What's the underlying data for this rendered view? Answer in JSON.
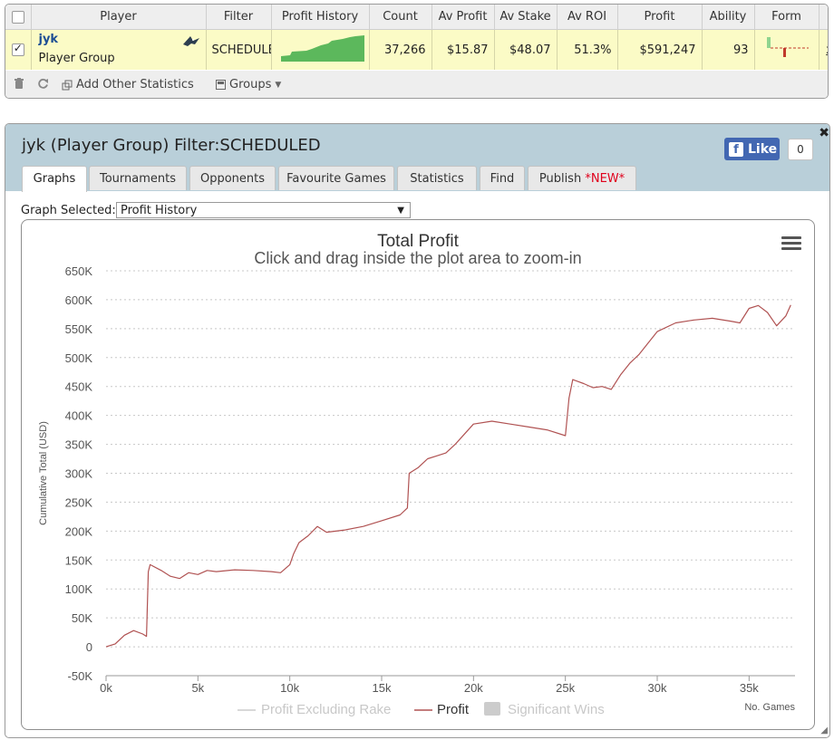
{
  "stats": {
    "headers": [
      "Player",
      "Filter",
      "Profit History",
      "Count",
      "Av Profit",
      "Av Stake",
      "Av ROI",
      "Profit",
      "Ability",
      "Form"
    ],
    "row": {
      "name": "jyk",
      "type": "Player Group",
      "filter": "SCHEDULE",
      "count": "37,266",
      "av_profit": "$15.87",
      "av_stake": "$48.07",
      "av_roi": "51.3%",
      "profit": "$591,247",
      "ability": "93",
      "remove": "x"
    },
    "toolbar": {
      "add_stats": "Add Other Statistics",
      "groups": "Groups"
    }
  },
  "graph_panel": {
    "title": "jyk (Player Group) Filter:SCHEDULED",
    "fb_like": "Like",
    "fb_count": "0",
    "tabs": [
      {
        "label": "Graphs"
      },
      {
        "label": "Tournaments"
      },
      {
        "label": "Opponents"
      },
      {
        "label": "Favourite Games"
      },
      {
        "label": "Statistics"
      },
      {
        "label": "Find"
      },
      {
        "label": "Publish",
        "badge": "*NEW*"
      }
    ],
    "active_tab": "Graphs",
    "select_label": "Graph Selected:",
    "select_value": "Profit History"
  },
  "colors": {
    "profit_line": "#b05252",
    "header_bg": "#b9cfd9",
    "highlight_row": "#fbfbc6",
    "sparkline": "#5cb85c",
    "fb_blue": "#4267b2"
  },
  "chart_data": {
    "type": "line",
    "title": "Total Profit",
    "subtitle": "Click and drag inside the plot area to zoom-in",
    "xlabel": "No. Games",
    "ylabel": "Cumulative Total (USD)",
    "xlim": [
      0,
      37266
    ],
    "ylim": [
      -50000,
      650000
    ],
    "x_ticks": [
      "0k",
      "5k",
      "10k",
      "15k",
      "20k",
      "25k",
      "30k",
      "35k"
    ],
    "y_ticks": [
      "650K",
      "600K",
      "550K",
      "500K",
      "450K",
      "400K",
      "350K",
      "300K",
      "250K",
      "200K",
      "150K",
      "100K",
      "50K",
      "0",
      "-50K"
    ],
    "grid": true,
    "legend_position": "bottom",
    "legend": [
      {
        "name": "Profit Excluding Rake",
        "active": false
      },
      {
        "name": "Profit",
        "active": true
      },
      {
        "name": "Significant Wins",
        "active": false
      }
    ],
    "series": [
      {
        "name": "Profit",
        "x": [
          0,
          500,
          1000,
          1500,
          2000,
          2200,
          2300,
          2400,
          3000,
          3500,
          4000,
          4500,
          5000,
          5500,
          6000,
          7000,
          8000,
          9000,
          9500,
          10000,
          10200,
          10500,
          11000,
          11500,
          12000,
          13000,
          14000,
          15000,
          16000,
          16400,
          16500,
          17000,
          17500,
          18000,
          18500,
          19000,
          20000,
          21000,
          22000,
          23000,
          24000,
          25000,
          25200,
          25400,
          26000,
          26500,
          27000,
          27500,
          28000,
          28500,
          29000,
          30000,
          31000,
          32000,
          33000,
          34000,
          34500,
          35000,
          35500,
          36000,
          36500,
          37000,
          37266
        ],
        "y": [
          0,
          5000,
          20000,
          28000,
          22000,
          18000,
          130000,
          142000,
          132000,
          122000,
          118000,
          128000,
          125000,
          132000,
          130000,
          133000,
          132000,
          130000,
          128000,
          142000,
          160000,
          180000,
          192000,
          208000,
          198000,
          202000,
          208000,
          218000,
          228000,
          240000,
          300000,
          310000,
          325000,
          330000,
          335000,
          350000,
          385000,
          390000,
          385000,
          380000,
          375000,
          365000,
          430000,
          462000,
          455000,
          448000,
          450000,
          445000,
          470000,
          490000,
          505000,
          545000,
          560000,
          565000,
          568000,
          563000,
          560000,
          585000,
          590000,
          578000,
          555000,
          572000,
          591000
        ]
      }
    ]
  }
}
